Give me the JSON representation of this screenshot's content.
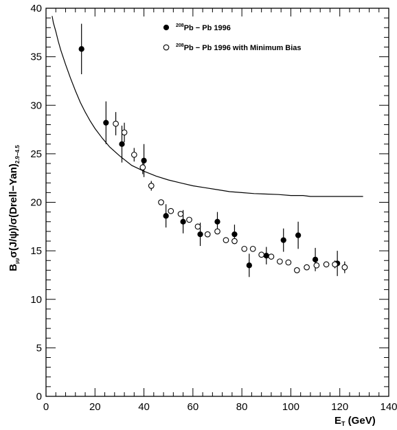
{
  "chart_data": {
    "type": "scatter",
    "xlabel_main": "E",
    "xlabel_sub": "T",
    "xlabel_unit": " (GeV)",
    "ylabel_parts": {
      "b": "B",
      "b_sub": "μμ",
      "main": "σ(J/ψ)/σ(Drell−Yan)",
      "sub": "2.9−4.5"
    },
    "xlim": [
      0,
      140
    ],
    "ylim": [
      0,
      40
    ],
    "xticks": [
      "0",
      "20",
      "40",
      "60",
      "80",
      "100",
      "120",
      "140"
    ],
    "yticks": [
      "0",
      "5",
      "10",
      "15",
      "20",
      "25",
      "30",
      "35",
      "40"
    ],
    "legend": [
      {
        "sup": "208",
        "text": "Pb − Pb 1996",
        "marker": "filled"
      },
      {
        "sup": "208",
        "text": "Pb − Pb 1996 with Minimum Bias",
        "marker": "open"
      }
    ],
    "series": [
      {
        "name": "208Pb - Pb 1996",
        "marker": "filled",
        "points": [
          {
            "x": 14.5,
            "y": 35.8,
            "err": 2.6
          },
          {
            "x": 24.5,
            "y": 28.2,
            "err": 2.2
          },
          {
            "x": 31.0,
            "y": 26.0,
            "err": 1.9
          },
          {
            "x": 40.0,
            "y": 24.3,
            "err": 1.7
          },
          {
            "x": 49.0,
            "y": 18.6,
            "err": 1.2
          },
          {
            "x": 56.0,
            "y": 18.0,
            "err": 1.2
          },
          {
            "x": 63.0,
            "y": 16.7,
            "err": 1.2
          },
          {
            "x": 70.0,
            "y": 18.0,
            "err": 1.0
          },
          {
            "x": 77.0,
            "y": 16.7,
            "err": 1.0
          },
          {
            "x": 83.0,
            "y": 13.5,
            "err": 1.2
          },
          {
            "x": 90.0,
            "y": 14.5,
            "err": 0.9
          },
          {
            "x": 97.0,
            "y": 16.1,
            "err": 1.2
          },
          {
            "x": 103.0,
            "y": 16.6,
            "err": 1.4
          },
          {
            "x": 110.0,
            "y": 14.1,
            "err": 1.2
          },
          {
            "x": 119.0,
            "y": 13.7,
            "err": 1.3
          }
        ]
      },
      {
        "name": "208Pb - Pb 1996 with Minimum Bias",
        "marker": "open",
        "points": [
          {
            "x": 28.5,
            "y": 28.1,
            "err": 1.2
          },
          {
            "x": 32.0,
            "y": 27.2,
            "err": 1.0
          },
          {
            "x": 36.0,
            "y": 24.9,
            "err": 0.7
          },
          {
            "x": 39.5,
            "y": 23.6,
            "err": 0.7
          },
          {
            "x": 43.0,
            "y": 21.7,
            "err": 0.5
          },
          {
            "x": 47.0,
            "y": 20.0,
            "err": 0.0
          },
          {
            "x": 51.0,
            "y": 19.1,
            "err": 0.0
          },
          {
            "x": 55.0,
            "y": 18.8,
            "err": 0.0
          },
          {
            "x": 58.5,
            "y": 18.2,
            "err": 0.0
          },
          {
            "x": 62.0,
            "y": 17.5,
            "err": 0.3
          },
          {
            "x": 66.0,
            "y": 16.7,
            "err": 0.0
          },
          {
            "x": 70.0,
            "y": 17.0,
            "err": 0.0
          },
          {
            "x": 73.5,
            "y": 16.1,
            "err": 0.0
          },
          {
            "x": 77.0,
            "y": 16.0,
            "err": 0.0
          },
          {
            "x": 81.0,
            "y": 15.2,
            "err": 0.0
          },
          {
            "x": 84.5,
            "y": 15.2,
            "err": 0.0
          },
          {
            "x": 88.0,
            "y": 14.6,
            "err": 0.0
          },
          {
            "x": 92.0,
            "y": 14.4,
            "err": 0.0
          },
          {
            "x": 95.5,
            "y": 13.9,
            "err": 0.0
          },
          {
            "x": 99.0,
            "y": 13.8,
            "err": 0.0
          },
          {
            "x": 102.5,
            "y": 13.0,
            "err": 0.0
          },
          {
            "x": 106.5,
            "y": 13.3,
            "err": 0.0
          },
          {
            "x": 110.5,
            "y": 13.5,
            "err": 0.3
          },
          {
            "x": 114.5,
            "y": 13.6,
            "err": 0.3
          },
          {
            "x": 118.0,
            "y": 13.6,
            "err": 0.4
          },
          {
            "x": 122.0,
            "y": 13.3,
            "err": 0.6
          }
        ]
      }
    ],
    "curve": {
      "points": [
        [
          2.5,
          39.2
        ],
        [
          3,
          38.5
        ],
        [
          4,
          37.6
        ],
        [
          5,
          36.6
        ],
        [
          6,
          35.7
        ],
        [
          8,
          34.2
        ],
        [
          10,
          32.8
        ],
        [
          12,
          31.5
        ],
        [
          14,
          30.3
        ],
        [
          16,
          29.3
        ],
        [
          18,
          28.4
        ],
        [
          20,
          27.6
        ],
        [
          23,
          26.6
        ],
        [
          26,
          25.7
        ],
        [
          30,
          24.8
        ],
        [
          35,
          23.8
        ],
        [
          40,
          23.2
        ],
        [
          45,
          22.7
        ],
        [
          50,
          22.3
        ],
        [
          55,
          22.0
        ],
        [
          60,
          21.7
        ],
        [
          65,
          21.5
        ],
        [
          70,
          21.3
        ],
        [
          75,
          21.1
        ],
        [
          80,
          21.0
        ],
        [
          85,
          20.9
        ],
        [
          90,
          20.85
        ],
        [
          95,
          20.8
        ],
        [
          100,
          20.7
        ],
        [
          105,
          20.7
        ],
        [
          108,
          20.6
        ],
        [
          115,
          20.6
        ],
        [
          120,
          20.6
        ],
        [
          125,
          20.6
        ],
        [
          129.5,
          20.6
        ]
      ]
    }
  }
}
